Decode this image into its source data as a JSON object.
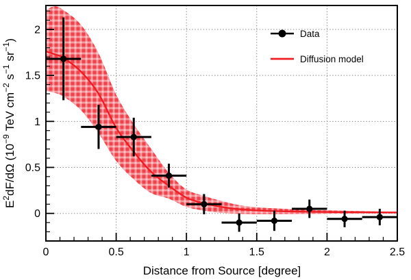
{
  "chart_data": {
    "type": "scatter",
    "title": "",
    "xlabel": "Distance from Source [degree]",
    "ylabel": "E2dF/dOmega (10-9 TeV cm-2 s-1 sr-1)",
    "ylabel_segments": [
      {
        "t": "E"
      },
      {
        "t": "2",
        "sup": true
      },
      {
        "t": "dF/dΩ (10"
      },
      {
        "t": "−9",
        "sup": true
      },
      {
        "t": " TeV cm"
      },
      {
        "t": "−2",
        "sup": true
      },
      {
        "t": " s"
      },
      {
        "t": "−1",
        "sup": true
      },
      {
        "t": " sr"
      },
      {
        "t": "−1",
        "sup": true
      },
      {
        "t": ")"
      }
    ],
    "xlim": [
      0,
      2.5
    ],
    "ylim": [
      -0.3,
      2.26
    ],
    "x_ticks": [
      0,
      0.5,
      1,
      1.5,
      2,
      2.5
    ],
    "x_tick_labels": [
      "0",
      "0.5",
      "1",
      "1.5",
      "2",
      "2.5"
    ],
    "y_ticks": [
      0,
      0.5,
      1,
      1.5,
      2
    ],
    "y_tick_labels": [
      "0",
      "0.5",
      "1",
      "1.5",
      "2"
    ],
    "minor_tick_step": 0.1,
    "grid": true,
    "legend": {
      "position": "top-right",
      "entries": [
        {
          "label": "Data",
          "symbol": "marker-line",
          "color": "#000000"
        },
        {
          "label": "Diffusion model",
          "symbol": "line",
          "color": "#ee1d23"
        }
      ]
    },
    "series": {
      "data": {
        "name": "Data",
        "marker": "filled-circle",
        "color": "#000000",
        "points": [
          {
            "x": 0.125,
            "y": 1.68,
            "xerr": 0.125,
            "yerr": 0.45
          },
          {
            "x": 0.375,
            "y": 0.94,
            "xerr": 0.125,
            "yerr": 0.24
          },
          {
            "x": 0.625,
            "y": 0.83,
            "xerr": 0.125,
            "yerr": 0.21
          },
          {
            "x": 0.875,
            "y": 0.41,
            "xerr": 0.125,
            "yerr": 0.13
          },
          {
            "x": 1.125,
            "y": 0.1,
            "xerr": 0.125,
            "yerr": 0.11
          },
          {
            "x": 1.375,
            "y": -0.1,
            "xerr": 0.125,
            "yerr": 0.1
          },
          {
            "x": 1.625,
            "y": -0.08,
            "xerr": 0.125,
            "yerr": 0.11
          },
          {
            "x": 1.875,
            "y": 0.05,
            "xerr": 0.125,
            "yerr": 0.1
          },
          {
            "x": 2.125,
            "y": -0.06,
            "xerr": 0.125,
            "yerr": 0.09
          },
          {
            "x": 2.375,
            "y": -0.04,
            "xerr": 0.125,
            "yerr": 0.09
          }
        ]
      },
      "model": {
        "name": "Diffusion model",
        "color": "#ee1d23",
        "x": [
          0,
          0.0625,
          0.125,
          0.25,
          0.375,
          0.5,
          0.625,
          0.75,
          0.875,
          1.0,
          1.125,
          1.25,
          1.375,
          1.5,
          1.625,
          1.75,
          1.875,
          2.0,
          2.125,
          2.25,
          2.375,
          2.5
        ],
        "y": [
          1.76,
          1.73,
          1.69,
          1.54,
          1.3,
          0.93,
          0.67,
          0.45,
          0.3,
          0.17,
          0.11,
          0.07,
          0.045,
          0.032,
          0.025,
          0.02,
          0.017,
          0.015,
          0.013,
          0.012,
          0.011,
          0.01
        ],
        "band_upper": [
          2.21,
          2.25,
          2.21,
          2.05,
          1.74,
          1.29,
          0.97,
          0.7,
          0.44,
          0.26,
          0.19,
          0.135,
          0.09,
          0.067,
          0.055,
          0.045,
          0.038,
          0.033,
          0.028,
          0.025,
          0.022,
          0.02
        ],
        "band_lower": [
          1.33,
          1.31,
          1.27,
          1.12,
          0.87,
          0.57,
          0.37,
          0.22,
          0.16,
          0.07,
          0.03,
          0.005,
          -0.005,
          -0.008,
          -0.008,
          -0.006,
          -0.005,
          -0.003,
          -0.002,
          -0.001,
          0.0,
          0.0
        ]
      }
    },
    "colors": {
      "model_line": "#ee1d23",
      "band_fill": "#f0424a",
      "band_stripe": "#ffffff",
      "data": "#000000",
      "grid": "#8c8c8c",
      "frame": "#000000",
      "background": "#ffffff"
    }
  }
}
